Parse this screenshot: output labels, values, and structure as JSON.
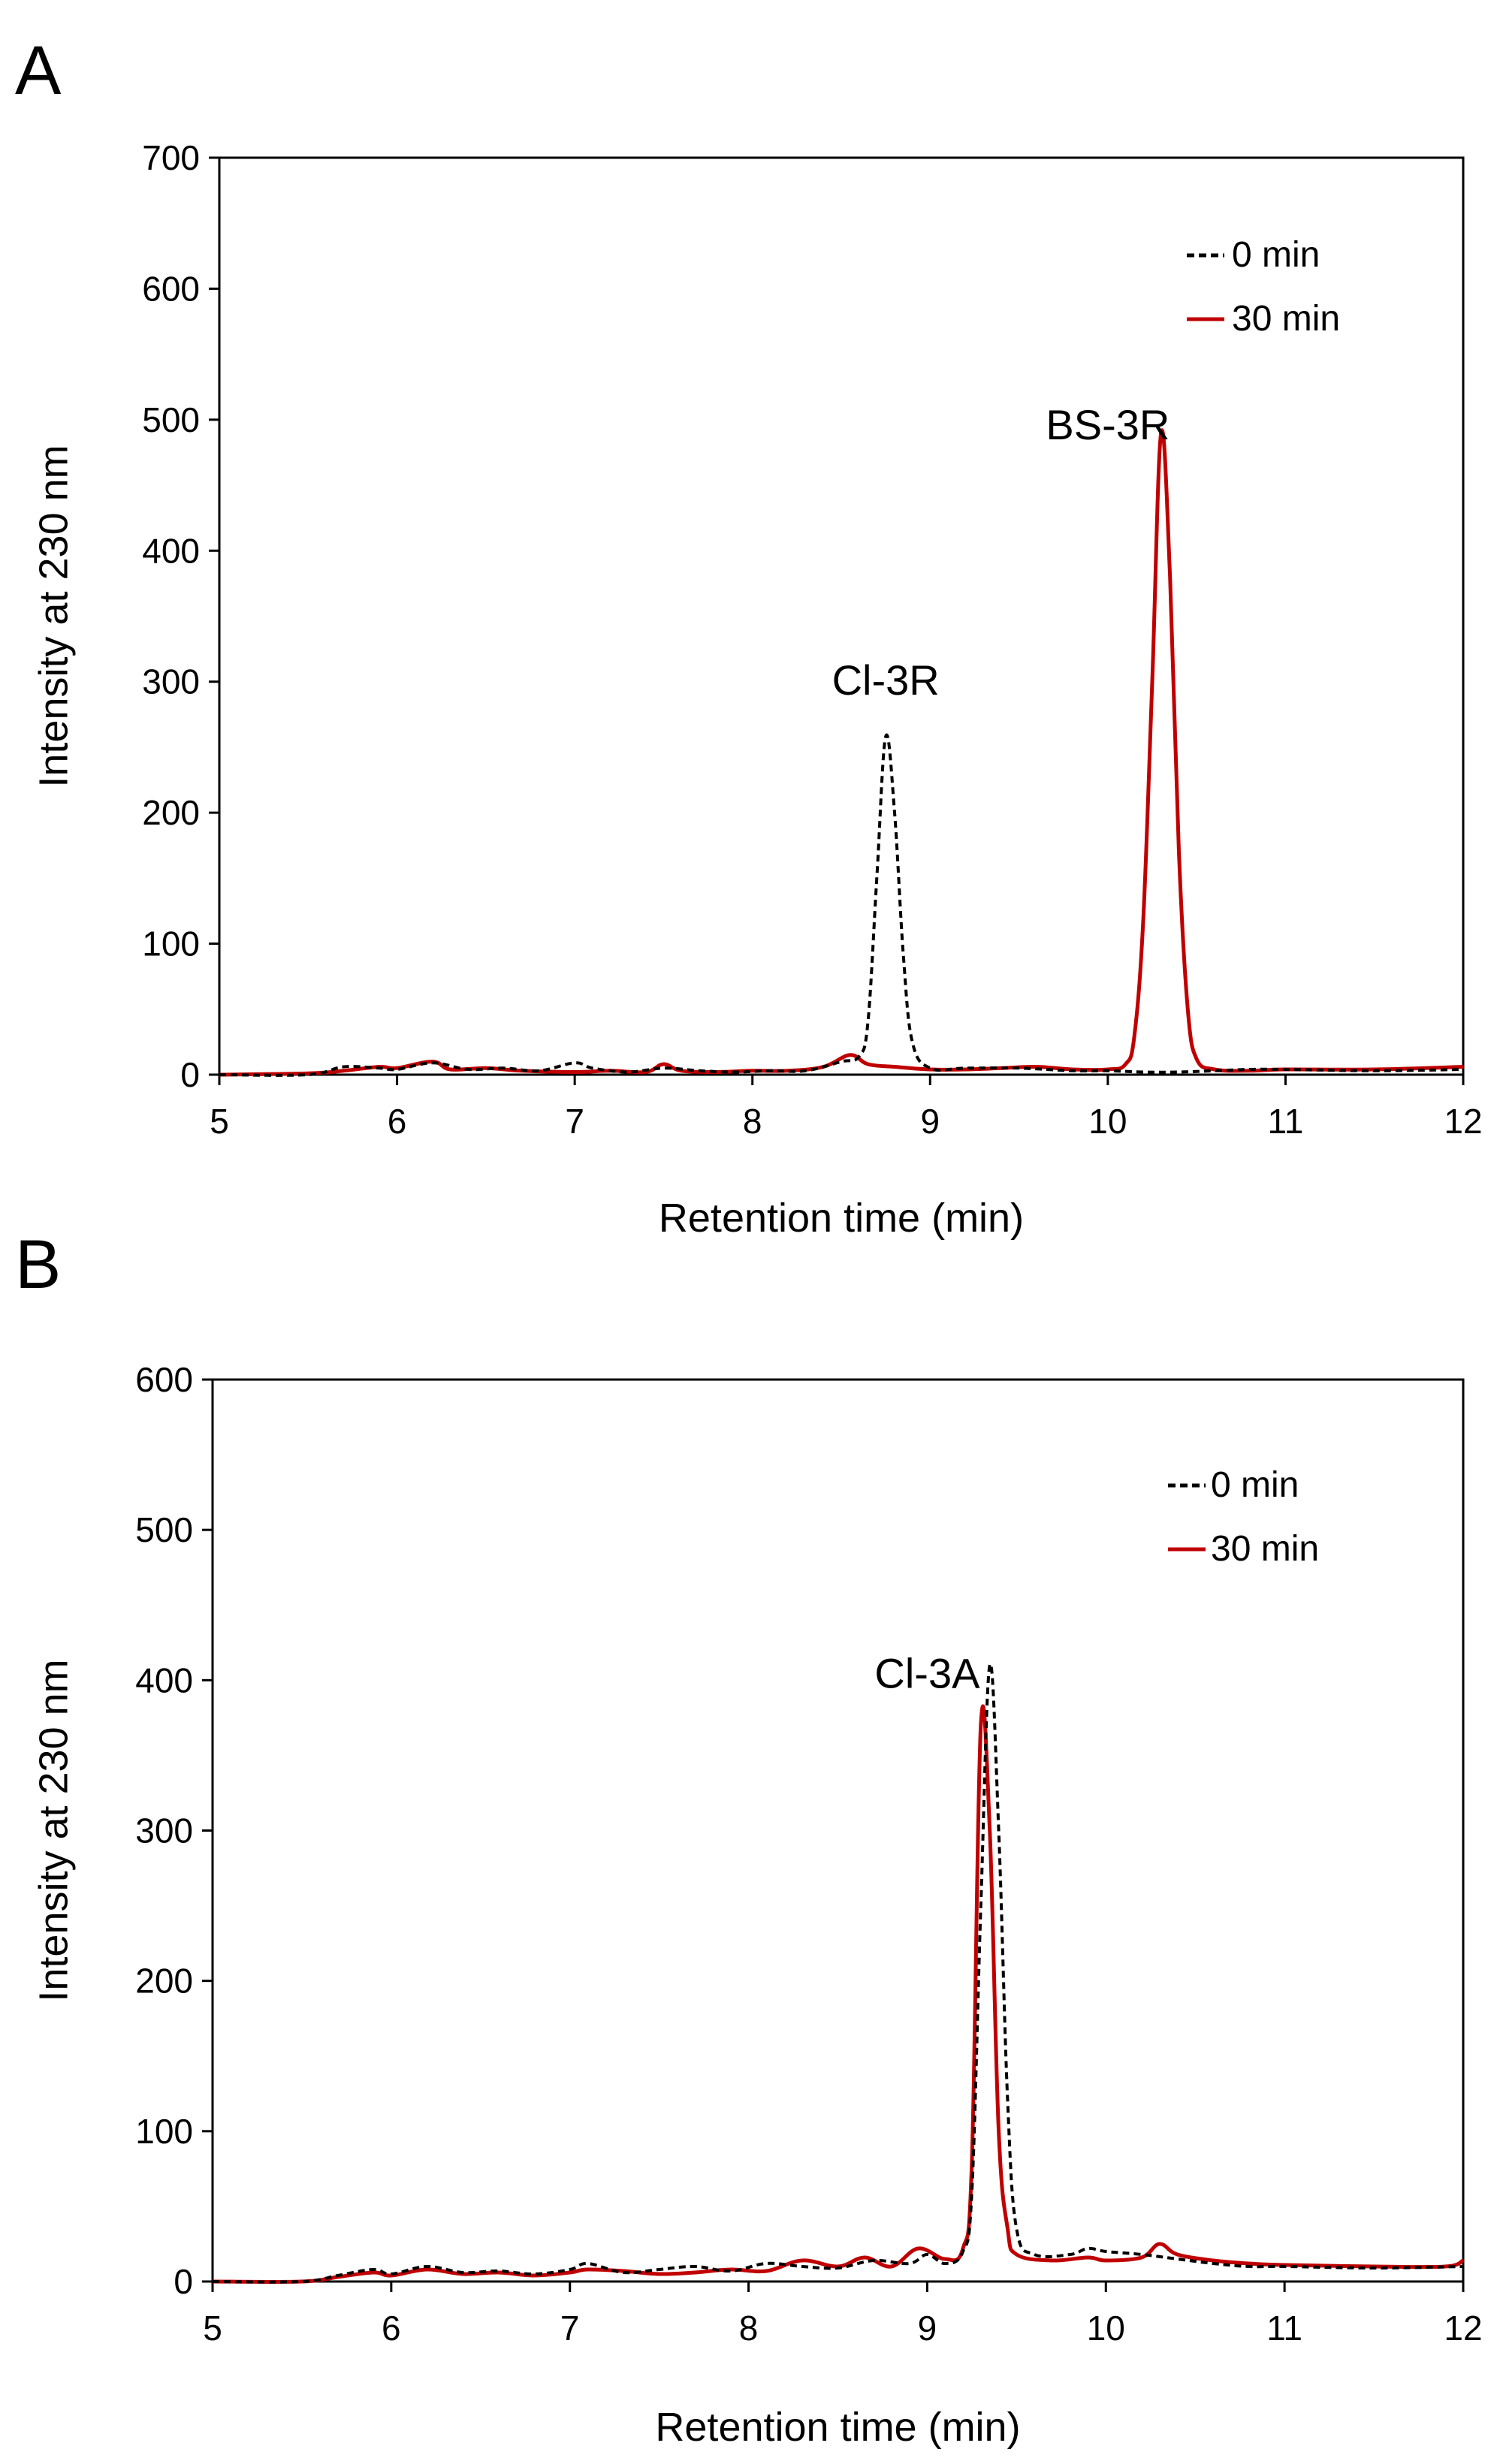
{
  "chart_data": [
    {
      "panel": "A",
      "type": "line",
      "title": "",
      "xlabel": "Retention time (min)",
      "ylabel": "Intensity at 230 nm",
      "xlim": [
        5,
        12
      ],
      "ylim": [
        0,
        700
      ],
      "xticks": [
        5,
        6,
        7,
        8,
        9,
        10,
        11,
        12
      ],
      "yticks": [
        0,
        100,
        200,
        300,
        400,
        500,
        600,
        700
      ],
      "grid": false,
      "legend_position": "top-right",
      "annotations": [
        {
          "text": "Cl-3R",
          "x": 8.75,
          "y": 290
        },
        {
          "text": "BS-3R",
          "x": 10.0,
          "y": 485
        }
      ],
      "series": [
        {
          "name": "0 min",
          "style": "dashed",
          "color": "#000000",
          "points": [
            [
              5.0,
              0
            ],
            [
              5.5,
              0
            ],
            [
              5.7,
              6
            ],
            [
              5.9,
              5
            ],
            [
              6.0,
              4
            ],
            [
              6.2,
              9
            ],
            [
              6.4,
              4
            ],
            [
              6.6,
              5
            ],
            [
              6.8,
              3
            ],
            [
              7.0,
              9
            ],
            [
              7.1,
              5
            ],
            [
              7.3,
              2
            ],
            [
              7.5,
              5
            ],
            [
              7.7,
              3
            ],
            [
              7.9,
              2
            ],
            [
              8.1,
              3
            ],
            [
              8.3,
              3
            ],
            [
              8.5,
              10
            ],
            [
              8.6,
              14
            ],
            [
              8.65,
              40
            ],
            [
              8.7,
              150
            ],
            [
              8.75,
              258
            ],
            [
              8.8,
              200
            ],
            [
              8.85,
              90
            ],
            [
              8.9,
              25
            ],
            [
              9.0,
              5
            ],
            [
              9.2,
              5
            ],
            [
              9.5,
              5
            ],
            [
              9.8,
              3
            ],
            [
              10.0,
              3
            ],
            [
              10.2,
              2
            ],
            [
              10.4,
              2
            ],
            [
              10.6,
              3
            ],
            [
              10.8,
              4
            ],
            [
              11.0,
              4
            ],
            [
              11.5,
              3
            ],
            [
              12.0,
              4
            ]
          ]
        },
        {
          "name": "30 min",
          "style": "solid",
          "color": "#c00000",
          "points": [
            [
              5.0,
              0
            ],
            [
              5.5,
              1
            ],
            [
              5.7,
              3
            ],
            [
              5.9,
              6
            ],
            [
              6.0,
              5
            ],
            [
              6.2,
              10
            ],
            [
              6.3,
              4
            ],
            [
              6.5,
              5
            ],
            [
              6.7,
              3
            ],
            [
              7.0,
              2
            ],
            [
              7.2,
              3
            ],
            [
              7.4,
              2
            ],
            [
              7.5,
              8
            ],
            [
              7.6,
              3
            ],
            [
              7.8,
              2
            ],
            [
              8.0,
              3
            ],
            [
              8.2,
              3
            ],
            [
              8.4,
              6
            ],
            [
              8.55,
              15
            ],
            [
              8.65,
              8
            ],
            [
              8.8,
              6
            ],
            [
              9.0,
              4
            ],
            [
              9.2,
              4
            ],
            [
              9.4,
              5
            ],
            [
              9.6,
              6
            ],
            [
              9.8,
              4
            ],
            [
              10.0,
              4
            ],
            [
              10.1,
              8
            ],
            [
              10.15,
              30
            ],
            [
              10.2,
              120
            ],
            [
              10.25,
              300
            ],
            [
              10.3,
              490
            ],
            [
              10.35,
              380
            ],
            [
              10.4,
              170
            ],
            [
              10.45,
              50
            ],
            [
              10.5,
              12
            ],
            [
              10.6,
              4
            ],
            [
              10.8,
              3
            ],
            [
              11.0,
              4
            ],
            [
              11.5,
              4
            ],
            [
              12.0,
              6
            ]
          ]
        }
      ]
    },
    {
      "panel": "B",
      "type": "line",
      "title": "",
      "xlabel": "Retention time (min)",
      "ylabel": "Intensity at 230 nm",
      "xlim": [
        5,
        12
      ],
      "ylim": [
        0,
        600
      ],
      "xticks": [
        5,
        6,
        7,
        8,
        9,
        10,
        11,
        12
      ],
      "yticks": [
        0,
        100,
        200,
        300,
        400,
        500,
        600
      ],
      "grid": false,
      "legend_position": "top-right",
      "annotations": [
        {
          "text": "Cl-3A",
          "x": 9.0,
          "y": 395
        }
      ],
      "series": [
        {
          "name": "0 min",
          "style": "dashed",
          "color": "#000000",
          "points": [
            [
              5.0,
              0
            ],
            [
              5.5,
              0
            ],
            [
              5.7,
              4
            ],
            [
              5.9,
              8
            ],
            [
              6.0,
              5
            ],
            [
              6.2,
              10
            ],
            [
              6.4,
              6
            ],
            [
              6.6,
              7
            ],
            [
              6.8,
              5
            ],
            [
              7.0,
              8
            ],
            [
              7.1,
              12
            ],
            [
              7.3,
              6
            ],
            [
              7.5,
              8
            ],
            [
              7.7,
              10
            ],
            [
              7.9,
              7
            ],
            [
              8.1,
              12
            ],
            [
              8.3,
              10
            ],
            [
              8.5,
              9
            ],
            [
              8.7,
              14
            ],
            [
              8.9,
              12
            ],
            [
              9.0,
              18
            ],
            [
              9.1,
              12
            ],
            [
              9.2,
              20
            ],
            [
              9.25,
              60
            ],
            [
              9.3,
              250
            ],
            [
              9.35,
              410
            ],
            [
              9.4,
              300
            ],
            [
              9.45,
              120
            ],
            [
              9.5,
              35
            ],
            [
              9.6,
              18
            ],
            [
              9.8,
              18
            ],
            [
              9.9,
              22
            ],
            [
              10.0,
              20
            ],
            [
              10.2,
              18
            ],
            [
              10.4,
              15
            ],
            [
              10.6,
              12
            ],
            [
              10.8,
              10
            ],
            [
              11.0,
              10
            ],
            [
              11.5,
              9
            ],
            [
              12.0,
              10
            ]
          ]
        },
        {
          "name": "30 min",
          "style": "solid",
          "color": "#c00000",
          "points": [
            [
              5.0,
              0
            ],
            [
              5.5,
              0
            ],
            [
              5.7,
              3
            ],
            [
              5.9,
              6
            ],
            [
              6.0,
              4
            ],
            [
              6.2,
              8
            ],
            [
              6.4,
              5
            ],
            [
              6.6,
              6
            ],
            [
              6.8,
              4
            ],
            [
              7.0,
              6
            ],
            [
              7.1,
              8
            ],
            [
              7.3,
              7
            ],
            [
              7.5,
              5
            ],
            [
              7.7,
              6
            ],
            [
              7.9,
              8
            ],
            [
              8.1,
              7
            ],
            [
              8.3,
              14
            ],
            [
              8.5,
              10
            ],
            [
              8.65,
              16
            ],
            [
              8.8,
              10
            ],
            [
              8.95,
              22
            ],
            [
              9.1,
              15
            ],
            [
              9.2,
              22
            ],
            [
              9.25,
              80
            ],
            [
              9.3,
              370
            ],
            [
              9.35,
              300
            ],
            [
              9.4,
              100
            ],
            [
              9.45,
              35
            ],
            [
              9.5,
              18
            ],
            [
              9.7,
              14
            ],
            [
              9.9,
              16
            ],
            [
              10.0,
              14
            ],
            [
              10.2,
              16
            ],
            [
              10.3,
              25
            ],
            [
              10.4,
              18
            ],
            [
              10.6,
              14
            ],
            [
              10.8,
              12
            ],
            [
              11.0,
              11
            ],
            [
              11.5,
              10
            ],
            [
              11.9,
              10
            ],
            [
              12.0,
              14
            ]
          ]
        }
      ]
    }
  ]
}
